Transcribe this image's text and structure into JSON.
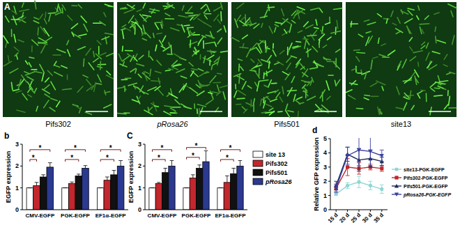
{
  "panel_label": "A",
  "images": [
    {
      "label": "Pifs302"
    },
    {
      "label": "pRosa26"
    },
    {
      "label": "Pifs501"
    },
    {
      "label": "site13"
    }
  ],
  "chart_data": [
    {
      "type": "bar",
      "title": "b",
      "y_label": "EGFP expression",
      "categories": [
        "CMV-EGFP",
        "PGK-EGFP",
        "EF1α-EGFP"
      ],
      "series": [
        {
          "name": "site 13",
          "color": "#ffffff",
          "values": [
            1,
            1,
            1
          ],
          "errors": [
            0,
            0,
            0
          ]
        },
        {
          "name": "Pifs302",
          "color": "#c1272d",
          "values": [
            1.1,
            1.2,
            1.35
          ],
          "errors": [
            0.15,
            0.07,
            0.15
          ]
        },
        {
          "name": "Pifs501",
          "color": "#111111",
          "values": [
            1.5,
            1.55,
            1.6
          ],
          "errors": [
            0.1,
            0.08,
            0.2
          ]
        },
        {
          "name": "pRosa26",
          "color": "#2b3990",
          "values": [
            1.95,
            1.9,
            2.0
          ],
          "errors": [
            0.2,
            0.12,
            0.25
          ]
        }
      ],
      "annotations": [
        {
          "category": 0,
          "from": 0,
          "to": 3,
          "y": 2.75,
          "text": "*"
        },
        {
          "category": 0,
          "from": 0,
          "to": 1,
          "y": 2.3,
          "text": "*"
        },
        {
          "category": 1,
          "from": 0,
          "to": 3,
          "y": 2.75,
          "text": "*"
        },
        {
          "category": 1,
          "from": 0,
          "to": 2,
          "y": 2.3,
          "text": "*"
        },
        {
          "category": 2,
          "from": 0,
          "to": 3,
          "y": 2.75,
          "text": "*"
        },
        {
          "category": 2,
          "from": 0,
          "to": 2,
          "y": 2.3,
          "text": "*"
        }
      ],
      "ylim": [
        0,
        3
      ],
      "yticks": [
        0,
        1,
        2,
        3
      ],
      "grid": false
    },
    {
      "type": "bar",
      "title": "C",
      "y_label": "EGFP expression",
      "categories": [
        "CMV-EGFP",
        "PGK-EGFP",
        "EF1α-EGFP"
      ],
      "series": [
        {
          "name": "site 13",
          "color": "#ffffff",
          "values": [
            1,
            1,
            1
          ],
          "errors": [
            0,
            0,
            0
          ]
        },
        {
          "name": "Pifs302",
          "color": "#c1272d",
          "values": [
            1.2,
            1.45,
            1.25
          ],
          "errors": [
            0.05,
            0.15,
            0.3
          ]
        },
        {
          "name": "Pifs501",
          "color": "#111111",
          "values": [
            1.7,
            1.9,
            1.65
          ],
          "errors": [
            0.2,
            0.15,
            0.25
          ]
        },
        {
          "name": "pRosa26",
          "color": "#2b3990",
          "values": [
            2.0,
            2.2,
            2.0
          ],
          "errors": [
            0.25,
            0.5,
            0.25
          ]
        }
      ],
      "annotations": [
        {
          "category": 0,
          "from": 0,
          "to": 3,
          "y": 2.75,
          "text": "*"
        },
        {
          "category": 0,
          "from": 0,
          "to": 2,
          "y": 2.3,
          "text": "*"
        },
        {
          "category": 1,
          "from": 0,
          "to": 3,
          "y": 2.85,
          "text": "*"
        },
        {
          "category": 1,
          "from": 0,
          "to": 2,
          "y": 2.4,
          "text": "*"
        },
        {
          "category": 2,
          "from": 0,
          "to": 3,
          "y": 2.75,
          "text": "*"
        },
        {
          "category": 2,
          "from": 0,
          "to": 2,
          "y": 2.3,
          "text": "*"
        }
      ],
      "ylim": [
        0,
        3
      ],
      "yticks": [
        0,
        1,
        2,
        3
      ],
      "grid": false,
      "legend": "right"
    },
    {
      "type": "line",
      "title": "d",
      "y_label": "Relative GFP expression",
      "categories": [
        "15 d",
        "20 d",
        "25 d",
        "30 d",
        "35 d"
      ],
      "series": [
        {
          "name": "site13-PGK-EGFP",
          "color": "#8fd6d4",
          "marker": "circle",
          "values": [
            1.1,
            1.7,
            1.95,
            1.7,
            1.45
          ],
          "errors": [
            0.1,
            0.2,
            0.4,
            0.3,
            0.3
          ]
        },
        {
          "name": "Pifs302-PGK-EGFP",
          "color": "#c1272d",
          "marker": "square",
          "values": [
            1.5,
            3.0,
            2.9,
            3.0,
            2.9
          ],
          "errors": [
            0.2,
            0.6,
            0.4,
            0.2,
            0.2
          ]
        },
        {
          "name": "Pifs501-PGK-EGFP",
          "color": "#1d2a5b",
          "marker": "triangle",
          "values": [
            1.7,
            3.9,
            3.5,
            3.6,
            3.4
          ],
          "errors": [
            0.3,
            0.5,
            0.8,
            0.6,
            0.3
          ]
        },
        {
          "name": "pRosa26-PGK-EGFP",
          "color": "#3b3f9f",
          "marker": "triangle-down",
          "values": [
            1.5,
            3.8,
            4.2,
            4.1,
            3.8
          ],
          "errors": [
            0.3,
            0.6,
            1.1,
            1.0,
            0.4
          ]
        }
      ],
      "ylim": [
        0,
        5
      ],
      "yticks": [
        0,
        1,
        2,
        3,
        4,
        5
      ],
      "grid": false,
      "legend": "right"
    }
  ]
}
